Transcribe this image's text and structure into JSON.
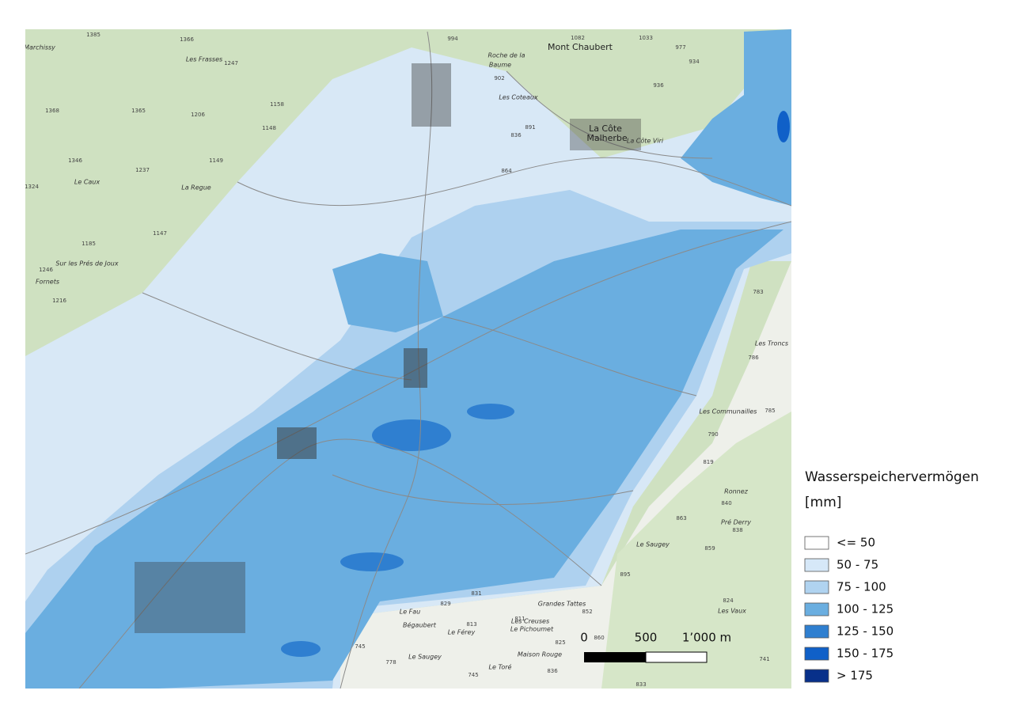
{
  "legend": {
    "title": "Wasserspeichervermögen",
    "unit": "[mm]",
    "items": [
      {
        "label": "<= 50",
        "color": "#ffffff"
      },
      {
        "label": "50 - 75",
        "color": "#d6e8f8"
      },
      {
        "label": "75 - 100",
        "color": "#b0d3f0"
      },
      {
        "label": "100 - 125",
        "color": "#6aaee0"
      },
      {
        "label": "125 - 150",
        "color": "#2f7fd0"
      },
      {
        "label": "150 - 175",
        "color": "#1060c8"
      },
      {
        "label": "> 175",
        "color": "#08308a"
      }
    ]
  },
  "scale_bar": {
    "labels": [
      "0",
      "500",
      "1’000 m"
    ]
  },
  "map_labels": [
    "Mont Chaubert",
    "La Côte",
    "Malherbe",
    "Les Coteaux",
    "Roche de la",
    "Baume",
    "La Côte Viri",
    "Le Caux",
    "La Regue",
    "Sur les Prés de Joux",
    "Fornets",
    "Les Frasses",
    "Marchissy",
    "Grandes Tattes",
    "Le Saugey",
    "Pré Derry",
    "Les Communailles",
    "Les Troncs",
    "Ronnez",
    "Maison Rouge",
    "Les Creuses",
    "Le Pichoumet",
    "Bégaubert",
    "Le Fau",
    "Le Férey",
    "Le Toré",
    "Les Vaux",
    "Le Saugey",
    "1385",
    "1366",
    "1247",
    "1365",
    "1206",
    "1158",
    "1148",
    "1149",
    "1237",
    "1346",
    "1368",
    "1324",
    "1185",
    "1147",
    "1246",
    "1216",
    "994",
    "902",
    "1082",
    "1033",
    "977",
    "934",
    "936",
    "891",
    "836",
    "864",
    "831",
    "829",
    "852",
    "860",
    "825",
    "836",
    "745",
    "778",
    "745",
    "783",
    "786",
    "785",
    "790",
    "819",
    "840",
    "863",
    "859",
    "838",
    "895",
    "824",
    "833",
    "741",
    "811",
    "813"
  ]
}
